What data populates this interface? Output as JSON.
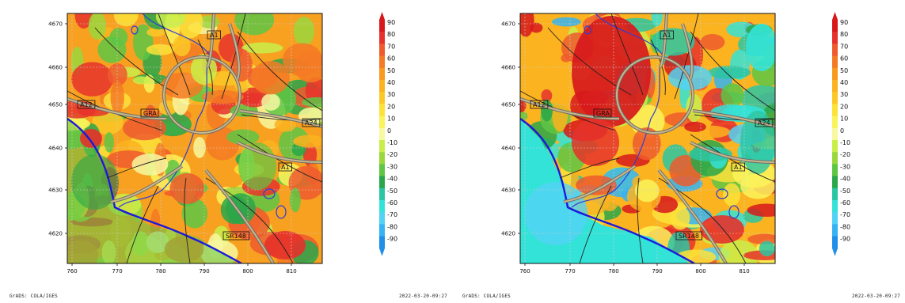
{
  "panels": [
    {
      "id": "left",
      "x_ticks": [
        "760",
        "770",
        "780",
        "790",
        "800",
        "810"
      ],
      "y_ticks": [
        "4670",
        "4660",
        "4650",
        "4640",
        "4630",
        "4620"
      ],
      "road_labels": [
        "A1",
        "A12",
        "GRA",
        "A24",
        "A1",
        "SR148"
      ],
      "colorbar_labels": [
        "90",
        "80",
        "70",
        "60",
        "50",
        "40",
        "30",
        "20",
        "10",
        "0",
        "-10",
        "-20",
        "-30",
        "-40",
        "-50",
        "-60",
        "-70",
        "-80",
        "-90"
      ],
      "footer_left": "GrADS: COLA/IGES",
      "footer_right": "2022-03-20-09:27",
      "field_style": "mostly-warm"
    },
    {
      "id": "right",
      "x_ticks": [
        "760",
        "770",
        "780",
        "790",
        "800",
        "810"
      ],
      "y_ticks": [
        "4670",
        "4660",
        "4650",
        "4640",
        "4630",
        "4620"
      ],
      "road_labels": [
        "A1",
        "A12",
        "GRA",
        "A24",
        "A1",
        "SR148"
      ],
      "colorbar_labels": [
        "90",
        "80",
        "70",
        "60",
        "50",
        "40",
        "30",
        "20",
        "10",
        "0",
        "-10",
        "-20",
        "-30",
        "-40",
        "-50",
        "-60",
        "-70",
        "-80",
        "-90"
      ],
      "footer_left": "GrADS: COLA/IGES",
      "footer_right": "2022-03-20-09:27",
      "field_style": "contrast"
    }
  ],
  "colorbar_colors": [
    "#d7191c",
    "#e6322b",
    "#ef5a2e",
    "#f47a25",
    "#f89a1e",
    "#fbb320",
    "#fcc828",
    "#fde23a",
    "#fbf35c",
    "#f8f8a0",
    "#c9ee4a",
    "#9ad73d",
    "#5ec545",
    "#2aa74a",
    "#2bc6a3",
    "#33e3d8",
    "#52d2f5",
    "#35b3f2",
    "#1f8fe8"
  ]
}
